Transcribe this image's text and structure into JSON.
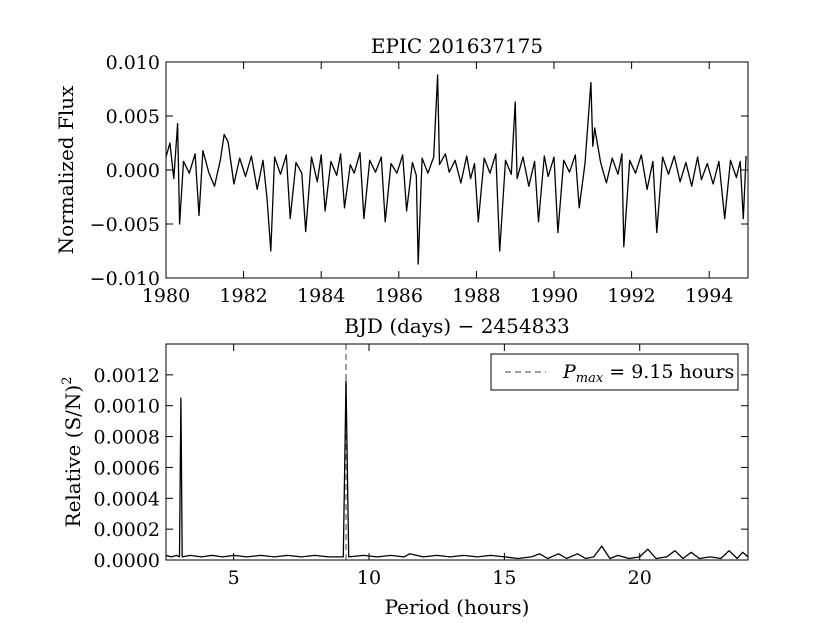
{
  "chart_data": [
    {
      "type": "line",
      "title": "EPIC 201637175",
      "xlabel": "BJD (days) − 2454833",
      "ylabel": "Normalized Flux",
      "xlim": [
        1980,
        1995
      ],
      "ylim": [
        -0.01,
        0.01
      ],
      "xticks": [
        1980,
        1982,
        1984,
        1986,
        1988,
        1990,
        1992,
        1994
      ],
      "xtick_labels": [
        "1980",
        "1982",
        "1984",
        "1986",
        "1988",
        "1990",
        "1992",
        "1994"
      ],
      "yticks": [
        -0.01,
        -0.005,
        0.0,
        0.005,
        0.01
      ],
      "ytick_labels": [
        "−0.010",
        "−0.005",
        "0.000",
        "0.005",
        "0.010"
      ],
      "grid": false,
      "series": [
        {
          "color": "#000000",
          "points": [
            [
              1980.0,
              0.0012
            ],
            [
              1980.1,
              0.0025
            ],
            [
              1980.2,
              -0.0008
            ],
            [
              1980.3,
              0.0043
            ],
            [
              1980.35,
              -0.005
            ],
            [
              1980.45,
              0.0008
            ],
            [
              1980.6,
              -0.0003
            ],
            [
              1980.75,
              0.0015
            ],
            [
              1980.85,
              -0.0042
            ],
            [
              1980.95,
              0.0018
            ],
            [
              1981.1,
              -0.0002
            ],
            [
              1981.25,
              -0.0015
            ],
            [
              1981.4,
              0.0009
            ],
            [
              1981.5,
              0.0033
            ],
            [
              1981.6,
              0.0026
            ],
            [
              1981.75,
              -0.0013
            ],
            [
              1981.9,
              0.0011
            ],
            [
              1982.05,
              -0.0006
            ],
            [
              1982.2,
              0.0013
            ],
            [
              1982.35,
              -0.0018
            ],
            [
              1982.5,
              0.0009
            ],
            [
              1982.6,
              -0.0025
            ],
            [
              1982.7,
              -0.0075
            ],
            [
              1982.8,
              0.0012
            ],
            [
              1982.95,
              -0.0004
            ],
            [
              1983.1,
              0.0014
            ],
            [
              1983.2,
              -0.0045
            ],
            [
              1983.35,
              0.0007
            ],
            [
              1983.5,
              -0.0003
            ],
            [
              1983.6,
              -0.0057
            ],
            [
              1983.75,
              0.0012
            ],
            [
              1983.9,
              -0.0011
            ],
            [
              1984.0,
              0.0014
            ],
            [
              1984.1,
              -0.0038
            ],
            [
              1984.25,
              0.0008
            ],
            [
              1984.4,
              -0.0005
            ],
            [
              1984.5,
              0.0015
            ],
            [
              1984.6,
              -0.0035
            ],
            [
              1984.75,
              0.0005
            ],
            [
              1984.85,
              -0.0003
            ],
            [
              1985.0,
              0.0016
            ],
            [
              1985.1,
              -0.0045
            ],
            [
              1985.25,
              0.0009
            ],
            [
              1985.4,
              -0.0002
            ],
            [
              1985.55,
              0.0012
            ],
            [
              1985.65,
              -0.0048
            ],
            [
              1985.8,
              0.0006
            ],
            [
              1985.95,
              -0.0003
            ],
            [
              1986.1,
              0.0014
            ],
            [
              1986.2,
              -0.0038
            ],
            [
              1986.35,
              0.0007
            ],
            [
              1986.45,
              -0.0005
            ],
            [
              1986.5,
              -0.0087
            ],
            [
              1986.6,
              0.0011
            ],
            [
              1986.75,
              -0.0003
            ],
            [
              1986.9,
              0.0012
            ],
            [
              1987.0,
              0.0088
            ],
            [
              1987.05,
              0.0005
            ],
            [
              1987.2,
              0.0015
            ],
            [
              1987.3,
              -0.0002
            ],
            [
              1987.45,
              0.0009
            ],
            [
              1987.6,
              -0.0012
            ],
            [
              1987.75,
              0.0013
            ],
            [
              1987.85,
              -0.0008
            ],
            [
              1987.95,
              0.0006
            ],
            [
              1988.05,
              -0.0048
            ],
            [
              1988.2,
              0.0011
            ],
            [
              1988.35,
              -0.0003
            ],
            [
              1988.5,
              0.0015
            ],
            [
              1988.6,
              -0.0075
            ],
            [
              1988.75,
              0.0009
            ],
            [
              1988.9,
              -0.0004
            ],
            [
              1989.0,
              0.0063
            ],
            [
              1989.05,
              -0.0008
            ],
            [
              1989.2,
              0.0012
            ],
            [
              1989.35,
              -0.0015
            ],
            [
              1989.5,
              0.0008
            ],
            [
              1989.6,
              -0.0048
            ],
            [
              1989.75,
              0.0013
            ],
            [
              1989.85,
              -0.0006
            ],
            [
              1990.0,
              0.0012
            ],
            [
              1990.1,
              -0.0058
            ],
            [
              1990.25,
              0.0009
            ],
            [
              1990.4,
              -0.0002
            ],
            [
              1990.55,
              0.0014
            ],
            [
              1990.65,
              -0.0035
            ],
            [
              1990.8,
              0.0006
            ],
            [
              1990.95,
              0.0081
            ],
            [
              1991.0,
              0.0022
            ],
            [
              1991.05,
              0.0039
            ],
            [
              1991.2,
              0.0007
            ],
            [
              1991.35,
              -0.0012
            ],
            [
              1991.5,
              0.0011
            ],
            [
              1991.65,
              -0.0004
            ],
            [
              1991.75,
              0.0015
            ],
            [
              1991.8,
              -0.0071
            ],
            [
              1991.95,
              0.0009
            ],
            [
              1992.1,
              -0.0003
            ],
            [
              1992.25,
              0.0014
            ],
            [
              1992.4,
              -0.0018
            ],
            [
              1992.55,
              0.0008
            ],
            [
              1992.65,
              -0.0058
            ],
            [
              1992.8,
              0.0012
            ],
            [
              1992.95,
              -0.0004
            ],
            [
              1993.1,
              0.0013
            ],
            [
              1993.25,
              -0.0011
            ],
            [
              1993.4,
              0.0007
            ],
            [
              1993.55,
              -0.0015
            ],
            [
              1993.7,
              0.0012
            ],
            [
              1993.8,
              -0.0009
            ],
            [
              1993.95,
              0.0006
            ],
            [
              1994.1,
              -0.0013
            ],
            [
              1994.25,
              0.0008
            ],
            [
              1994.4,
              -0.0045
            ],
            [
              1994.55,
              0.0009
            ],
            [
              1994.7,
              -0.0007
            ],
            [
              1994.8,
              0.0008
            ],
            [
              1994.88,
              -0.0045
            ],
            [
              1994.95,
              0.0013
            ]
          ]
        }
      ]
    },
    {
      "type": "line",
      "title": "",
      "xlabel": "Period (hours)",
      "ylabel": "Relative (S/N)",
      "ylabel_superscript": "2",
      "xlim": [
        2.5,
        24
      ],
      "ylim": [
        0,
        0.0014
      ],
      "xticks": [
        5,
        10,
        15,
        20
      ],
      "xtick_labels": [
        "5",
        "10",
        "15",
        "20"
      ],
      "yticks": [
        0,
        0.0002,
        0.0004,
        0.0006,
        0.0008,
        0.001,
        0.0012
      ],
      "ytick_labels": [
        "0.0000",
        "0.0002",
        "0.0004",
        "0.0006",
        "0.0008",
        "0.0010",
        "0.0012"
      ],
      "grid": false,
      "legend": {
        "placement": "top-right",
        "symbol": "P",
        "subscript": "max",
        "text": " = 9.15 hours",
        "line_style": "dashed",
        "line_color": "#808080"
      },
      "vline": {
        "x": 9.15,
        "color": "#808080",
        "style": "dashed"
      },
      "series": [
        {
          "color": "#000000",
          "points": [
            [
              2.5,
              3e-05
            ],
            [
              2.7,
              2e-05
            ],
            [
              2.9,
              3e-05
            ],
            [
              3.0,
              2e-05
            ],
            [
              3.05,
              0.00105
            ],
            [
              3.1,
              2e-05
            ],
            [
              3.4,
              3e-05
            ],
            [
              3.8,
              2e-05
            ],
            [
              4.2,
              3e-05
            ],
            [
              4.6,
              2e-05
            ],
            [
              5.0,
              3e-05
            ],
            [
              5.5,
              2e-05
            ],
            [
              6.0,
              3e-05
            ],
            [
              6.5,
              2e-05
            ],
            [
              7.0,
              3e-05
            ],
            [
              7.5,
              2e-05
            ],
            [
              8.0,
              3e-05
            ],
            [
              8.5,
              2e-05
            ],
            [
              9.05,
              2e-05
            ],
            [
              9.15,
              0.00116
            ],
            [
              9.25,
              2e-05
            ],
            [
              9.8,
              3e-05
            ],
            [
              10.3,
              2e-05
            ],
            [
              10.8,
              3e-05
            ],
            [
              11.3,
              2e-05
            ],
            [
              11.5,
              4e-05
            ],
            [
              12.0,
              2e-05
            ],
            [
              12.5,
              3e-05
            ],
            [
              13.0,
              2e-05
            ],
            [
              13.5,
              3e-05
            ],
            [
              14.0,
              2e-05
            ],
            [
              14.5,
              3e-05
            ],
            [
              15.0,
              2e-05
            ],
            [
              15.5,
              1e-05
            ],
            [
              16.0,
              2e-05
            ],
            [
              16.3,
              4e-05
            ],
            [
              16.6,
              1e-05
            ],
            [
              17.0,
              4e-05
            ],
            [
              17.3,
              1e-05
            ],
            [
              17.7,
              4e-05
            ],
            [
              18.0,
              1e-05
            ],
            [
              18.3,
              2e-05
            ],
            [
              18.6,
              9e-05
            ],
            [
              18.9,
              1e-05
            ],
            [
              19.2,
              3e-05
            ],
            [
              19.6,
              1e-05
            ],
            [
              20.0,
              2e-05
            ],
            [
              20.3,
              7e-05
            ],
            [
              20.6,
              1e-05
            ],
            [
              21.0,
              2e-05
            ],
            [
              21.3,
              6e-05
            ],
            [
              21.6,
              1e-05
            ],
            [
              21.9,
              5e-05
            ],
            [
              22.2,
              1e-05
            ],
            [
              22.6,
              2e-05
            ],
            [
              23.0,
              1e-05
            ],
            [
              23.3,
              6e-05
            ],
            [
              23.6,
              1e-05
            ],
            [
              23.8,
              5e-05
            ],
            [
              24.0,
              2e-05
            ]
          ]
        }
      ]
    }
  ]
}
